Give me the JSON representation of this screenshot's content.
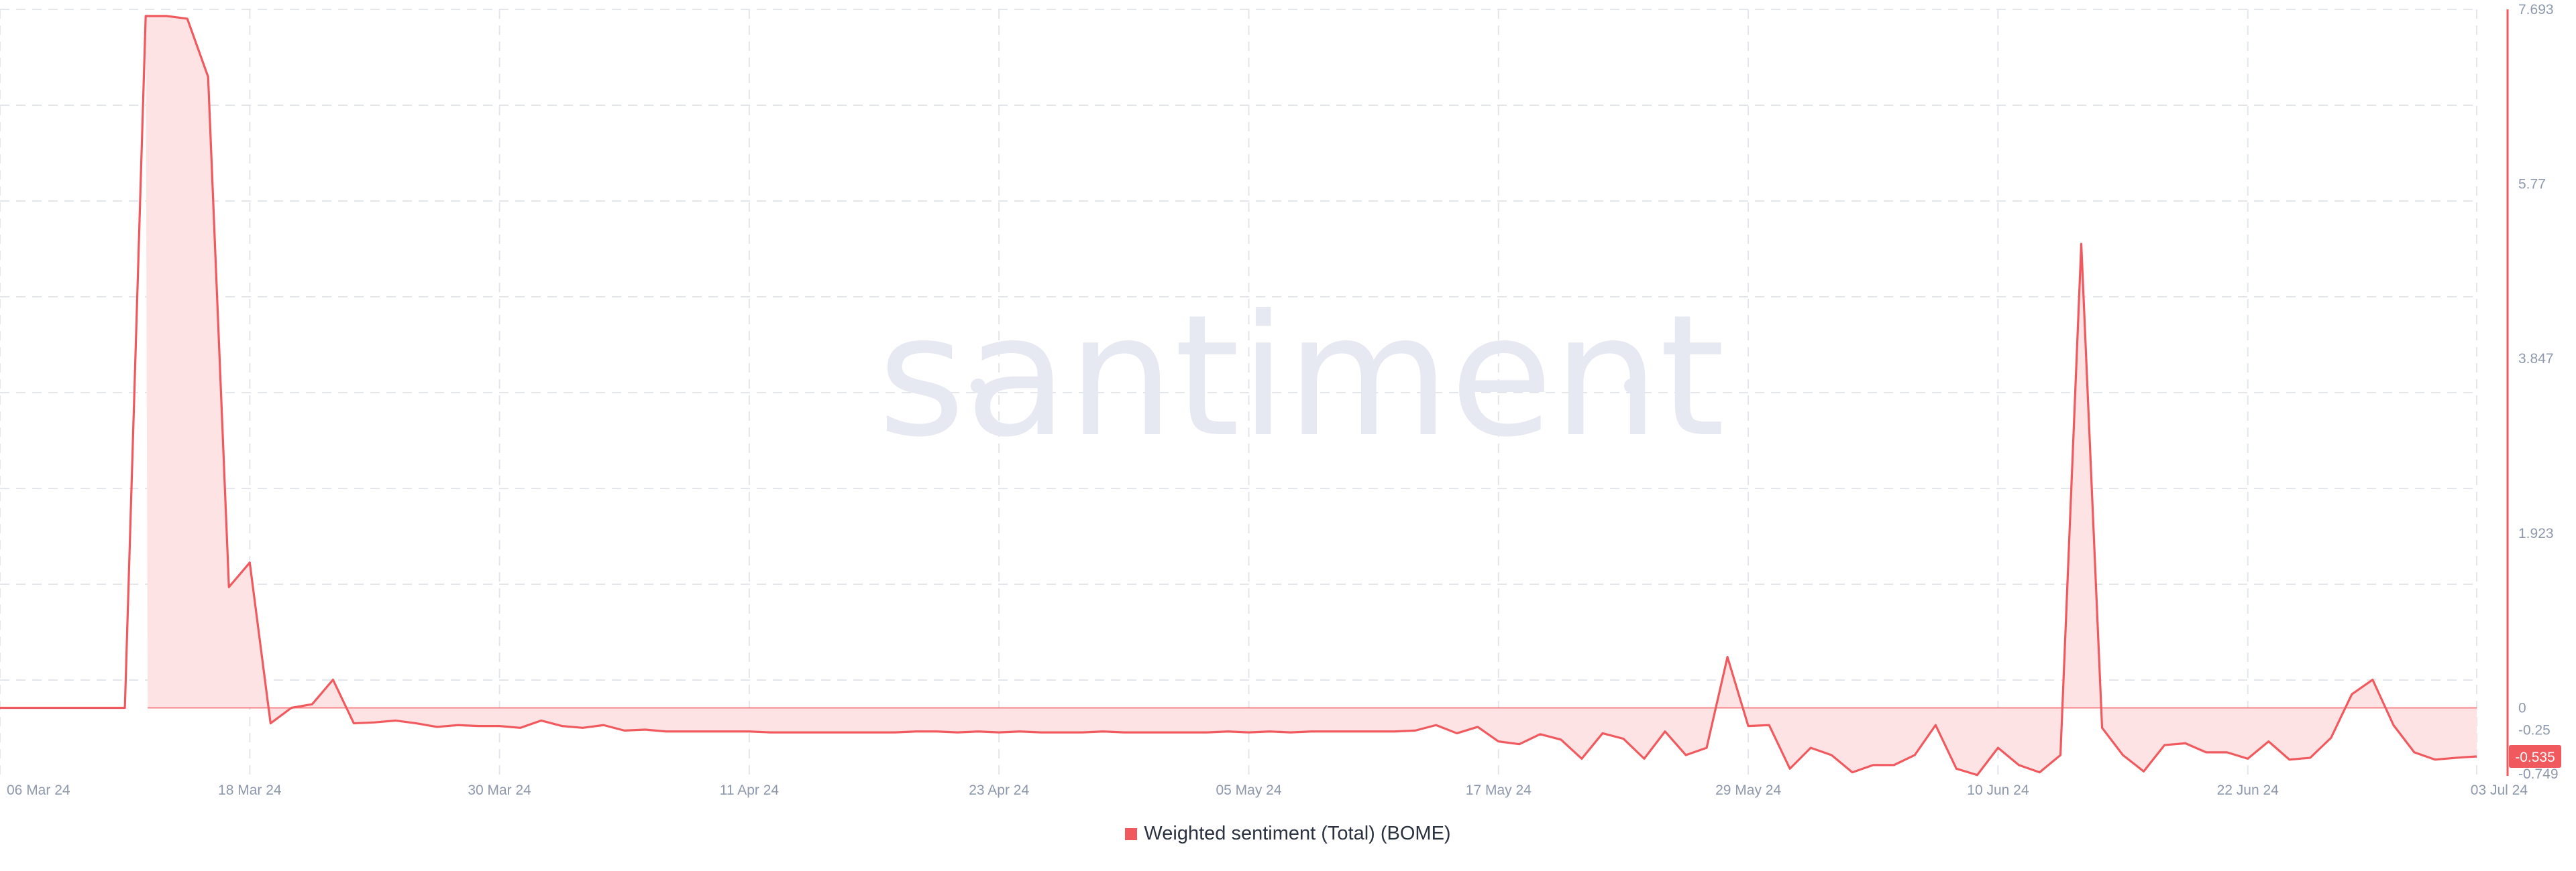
{
  "watermark": {
    "text": "santiment",
    "color": "#e6e9f1"
  },
  "legend": {
    "label": "Weighted sentiment (Total) (BOME)"
  },
  "colors": {
    "series": "#f05a5f",
    "fill": "#fde3e4",
    "badge": "#f05a5f",
    "grid": "#e3e6ea",
    "axis_text": "#8d98ab"
  },
  "chart_data": {
    "type": "area",
    "title": "",
    "xlabel": "",
    "ylabel": "",
    "ylim": [
      -0.749,
      7.693
    ],
    "y_ticks": [
      "7.693",
      "5.77",
      "3.847",
      "1.923",
      "0",
      "-0.25",
      "-0.749"
    ],
    "x_ticks": [
      {
        "date": "2024-03-06",
        "label": "06 Mar 24"
      },
      {
        "date": "2024-03-18",
        "label": "18 Mar 24"
      },
      {
        "date": "2024-03-30",
        "label": "30 Mar 24"
      },
      {
        "date": "2024-04-11",
        "label": "11 Apr 24"
      },
      {
        "date": "2024-04-23",
        "label": "23 Apr 24"
      },
      {
        "date": "2024-05-05",
        "label": "05 May 24"
      },
      {
        "date": "2024-05-17",
        "label": "17 May 24"
      },
      {
        "date": "2024-05-29",
        "label": "29 May 24"
      },
      {
        "date": "2024-06-10",
        "label": "10 Jun 24"
      },
      {
        "date": "2024-06-22",
        "label": "22 Jun 24"
      },
      {
        "date": "2024-07-03",
        "label": "03 Jul 24"
      }
    ],
    "last_value_label": "-0.535",
    "grid": true,
    "legend_position": "bottom-center",
    "series": [
      {
        "name": "Weighted sentiment (Total) (BOME)",
        "points": [
          [
            "2024-03-06",
            0
          ],
          [
            "2024-03-07",
            0
          ],
          [
            "2024-03-08",
            0
          ],
          [
            "2024-03-09",
            0
          ],
          [
            "2024-03-10",
            0
          ],
          [
            "2024-03-11",
            0
          ],
          [
            "2024-03-12",
            0
          ],
          [
            "2024-03-13",
            7.62
          ],
          [
            "2024-03-14",
            7.62
          ],
          [
            "2024-03-15",
            7.59
          ],
          [
            "2024-03-16",
            6.95
          ],
          [
            "2024-03-17",
            1.33
          ],
          [
            "2024-03-18",
            1.6
          ],
          [
            "2024-03-19",
            -0.17
          ],
          [
            "2024-03-20",
            0.0
          ],
          [
            "2024-03-21",
            0.04
          ],
          [
            "2024-03-22",
            0.31
          ],
          [
            "2024-03-23",
            -0.17
          ],
          [
            "2024-03-24",
            -0.16
          ],
          [
            "2024-03-25",
            -0.14
          ],
          [
            "2024-03-26",
            -0.17
          ],
          [
            "2024-03-27",
            -0.21
          ],
          [
            "2024-03-28",
            -0.19
          ],
          [
            "2024-03-29",
            -0.2
          ],
          [
            "2024-03-30",
            -0.2
          ],
          [
            "2024-03-31",
            -0.22
          ],
          [
            "2024-04-01",
            -0.14
          ],
          [
            "2024-04-02",
            -0.2
          ],
          [
            "2024-04-03",
            -0.22
          ],
          [
            "2024-04-04",
            -0.19
          ],
          [
            "2024-04-05",
            -0.25
          ],
          [
            "2024-04-06",
            -0.24
          ],
          [
            "2024-04-07",
            -0.26
          ],
          [
            "2024-04-08",
            -0.26
          ],
          [
            "2024-04-09",
            -0.26
          ],
          [
            "2024-04-10",
            -0.26
          ],
          [
            "2024-04-11",
            -0.26
          ],
          [
            "2024-04-12",
            -0.27
          ],
          [
            "2024-04-13",
            -0.27
          ],
          [
            "2024-04-14",
            -0.27
          ],
          [
            "2024-04-15",
            -0.27
          ],
          [
            "2024-04-16",
            -0.27
          ],
          [
            "2024-04-17",
            -0.27
          ],
          [
            "2024-04-18",
            -0.27
          ],
          [
            "2024-04-19",
            -0.26
          ],
          [
            "2024-04-20",
            -0.26
          ],
          [
            "2024-04-21",
            -0.27
          ],
          [
            "2024-04-22",
            -0.26
          ],
          [
            "2024-04-23",
            -0.27
          ],
          [
            "2024-04-24",
            -0.26
          ],
          [
            "2024-04-25",
            -0.27
          ],
          [
            "2024-04-26",
            -0.27
          ],
          [
            "2024-04-27",
            -0.27
          ],
          [
            "2024-04-28",
            -0.26
          ],
          [
            "2024-04-29",
            -0.27
          ],
          [
            "2024-04-30",
            -0.27
          ],
          [
            "2024-05-01",
            -0.27
          ],
          [
            "2024-05-02",
            -0.27
          ],
          [
            "2024-05-03",
            -0.27
          ],
          [
            "2024-05-04",
            -0.26
          ],
          [
            "2024-05-05",
            -0.27
          ],
          [
            "2024-05-06",
            -0.26
          ],
          [
            "2024-05-07",
            -0.27
          ],
          [
            "2024-05-08",
            -0.26
          ],
          [
            "2024-05-09",
            -0.26
          ],
          [
            "2024-05-10",
            -0.26
          ],
          [
            "2024-05-11",
            -0.26
          ],
          [
            "2024-05-12",
            -0.26
          ],
          [
            "2024-05-13",
            -0.25
          ],
          [
            "2024-05-14",
            -0.19
          ],
          [
            "2024-05-15",
            -0.28
          ],
          [
            "2024-05-16",
            -0.21
          ],
          [
            "2024-05-17",
            -0.37
          ],
          [
            "2024-05-18",
            -0.4
          ],
          [
            "2024-05-19",
            -0.29
          ],
          [
            "2024-05-20",
            -0.35
          ],
          [
            "2024-05-21",
            -0.56
          ],
          [
            "2024-05-22",
            -0.28
          ],
          [
            "2024-05-23",
            -0.34
          ],
          [
            "2024-05-24",
            -0.56
          ],
          [
            "2024-05-25",
            -0.26
          ],
          [
            "2024-05-26",
            -0.52
          ],
          [
            "2024-05-27",
            -0.44
          ],
          [
            "2024-05-28",
            0.56
          ],
          [
            "2024-05-29",
            -0.2
          ],
          [
            "2024-05-30",
            -0.19
          ],
          [
            "2024-05-31",
            -0.67
          ],
          [
            "2024-06-01",
            -0.44
          ],
          [
            "2024-06-02",
            -0.52
          ],
          [
            "2024-06-03",
            -0.71
          ],
          [
            "2024-06-04",
            -0.63
          ],
          [
            "2024-06-05",
            -0.63
          ],
          [
            "2024-06-06",
            -0.52
          ],
          [
            "2024-06-07",
            -0.19
          ],
          [
            "2024-06-08",
            -0.67
          ],
          [
            "2024-06-09",
            -0.74
          ],
          [
            "2024-06-10",
            -0.44
          ],
          [
            "2024-06-11",
            -0.63
          ],
          [
            "2024-06-12",
            -0.71
          ],
          [
            "2024-06-13",
            -0.52
          ],
          [
            "2024-06-14",
            5.11
          ],
          [
            "2024-06-15",
            -0.22
          ],
          [
            "2024-06-16",
            -0.52
          ],
          [
            "2024-06-17",
            -0.7
          ],
          [
            "2024-06-18",
            -0.41
          ],
          [
            "2024-06-19",
            -0.39
          ],
          [
            "2024-06-20",
            -0.49
          ],
          [
            "2024-06-21",
            -0.49
          ],
          [
            "2024-06-22",
            -0.56
          ],
          [
            "2024-06-23",
            -0.37
          ],
          [
            "2024-06-24",
            -0.57
          ],
          [
            "2024-06-25",
            -0.55
          ],
          [
            "2024-06-26",
            -0.33
          ],
          [
            "2024-06-27",
            0.15
          ],
          [
            "2024-06-28",
            0.31
          ],
          [
            "2024-06-29",
            -0.19
          ],
          [
            "2024-06-30",
            -0.49
          ],
          [
            "2024-07-01",
            -0.57
          ],
          [
            "2024-07-02",
            -0.55
          ],
          [
            "2024-07-03",
            -0.535
          ]
        ]
      }
    ]
  }
}
